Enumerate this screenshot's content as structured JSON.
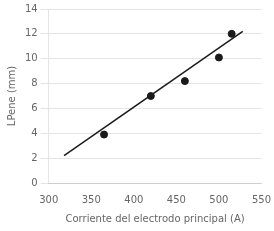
{
  "chart_data": {
    "type": "scatter",
    "xlabel": "Corriente del electrodo principal (A)",
    "ylabel": "LPene (mm)",
    "series": [
      {
        "type": "scatter",
        "color": "#1a1a1a",
        "marker": "circle",
        "x": [
          365,
          420,
          460,
          500,
          515
        ],
        "values": [
          3.9,
          7.0,
          8.2,
          10.1,
          12.0
        ]
      },
      {
        "type": "line",
        "color": "#1a1a1a",
        "line_style": "solid",
        "x": [
          318,
          528
        ],
        "values": [
          2.2,
          12.2
        ]
      }
    ],
    "xlim": [
      300,
      550
    ],
    "xticks": [
      300,
      350,
      400,
      450,
      500,
      550
    ],
    "ylim": [
      0,
      14
    ],
    "yticks": [
      0,
      2,
      4,
      6,
      8,
      10,
      12,
      14
    ],
    "grid": true
  }
}
